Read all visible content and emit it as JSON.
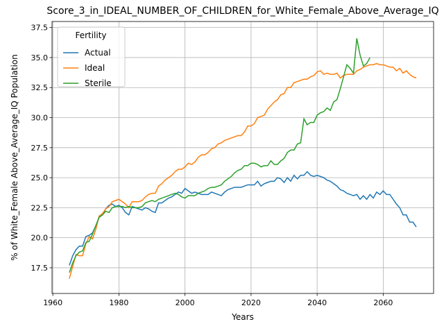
{
  "chart_data": {
    "type": "line",
    "title": "Score_3_in_IDEAL_NUMBER_OF_CHILDREN_for_White_Female_Above_Average_IQ",
    "xlabel": "Years",
    "ylabel": "% of White_Female Above_Average_IQ Population",
    "x": [
      1965,
      1966,
      1967,
      1968,
      1969,
      1970,
      1971,
      1972,
      1973,
      1974,
      1975,
      1976,
      1977,
      1978,
      1979,
      1980,
      1981,
      1982,
      1983,
      1984,
      1985,
      1986,
      1987,
      1988,
      1989,
      1990,
      1991,
      1992,
      1993,
      1994,
      1995,
      1996,
      1997,
      1998,
      1999,
      2000,
      2001,
      2002,
      2003,
      2004,
      2005,
      2006,
      2007,
      2008,
      2009,
      2010,
      2011,
      2012,
      2013,
      2014,
      2015,
      2016,
      2017,
      2018,
      2019,
      2020,
      2021,
      2022,
      2023,
      2024,
      2025,
      2026,
      2027,
      2028,
      2029,
      2030,
      2031,
      2032,
      2033,
      2034,
      2035,
      2036,
      2037,
      2038,
      2039,
      2040,
      2041,
      2042,
      2043,
      2044,
      2045,
      2046,
      2047,
      2048,
      2049,
      2050,
      2051,
      2052,
      2053,
      2054,
      2055,
      2056,
      2057,
      2058,
      2059,
      2060,
      2061,
      2062,
      2063,
      2064,
      2065,
      2066,
      2067,
      2068,
      2069,
      2070
    ],
    "series": [
      {
        "name": "Actual",
        "color": "#1f77b4",
        "values": [
          17.7,
          18.5,
          19.0,
          19.3,
          19.3,
          20.1,
          20.2,
          20.4,
          21.0,
          21.7,
          21.9,
          22.4,
          22.7,
          22.8,
          22.6,
          22.7,
          22.5,
          22.1,
          21.9,
          22.6,
          22.5,
          22.4,
          22.3,
          22.5,
          22.4,
          22.2,
          22.1,
          22.9,
          22.9,
          23.1,
          23.3,
          23.4,
          23.6,
          23.8,
          23.7,
          24.1,
          23.9,
          23.7,
          23.8,
          23.7,
          23.6,
          23.6,
          23.6,
          23.8,
          23.7,
          23.6,
          23.5,
          23.8,
          24.0,
          24.1,
          24.2,
          24.2,
          24.2,
          24.3,
          24.4,
          24.4,
          24.4,
          24.7,
          24.3,
          24.5,
          24.6,
          24.7,
          24.7,
          25.0,
          24.9,
          24.6,
          25.0,
          24.7,
          25.2,
          24.9,
          25.2,
          25.2,
          25.5,
          25.2,
          25.1,
          25.2,
          25.1,
          25.0,
          24.8,
          24.7,
          24.5,
          24.3,
          24.0,
          23.9,
          23.7,
          23.6,
          23.5,
          23.6,
          23.2,
          23.5,
          23.2,
          23.6,
          23.3,
          23.8,
          23.6,
          23.9,
          23.6,
          23.6,
          23.2,
          22.8,
          22.5,
          21.9,
          21.9,
          21.3,
          21.3,
          20.9
        ]
      },
      {
        "name": "Ideal",
        "color": "#ff7f0e",
        "values": [
          16.6,
          17.6,
          18.6,
          18.5,
          18.5,
          19.5,
          20.1,
          19.9,
          20.7,
          21.8,
          22.0,
          22.4,
          22.6,
          23.0,
          23.1,
          23.2,
          23.0,
          22.8,
          22.5,
          23.0,
          23.0,
          23.0,
          23.1,
          23.4,
          23.6,
          23.7,
          23.7,
          24.3,
          24.5,
          24.8,
          25.0,
          25.2,
          25.5,
          25.7,
          25.7,
          25.9,
          26.2,
          26.1,
          26.3,
          26.7,
          26.9,
          26.9,
          27.1,
          27.4,
          27.5,
          27.8,
          27.9,
          28.1,
          28.2,
          28.3,
          28.4,
          28.5,
          28.5,
          28.8,
          29.3,
          29.3,
          29.5,
          30.0,
          30.1,
          30.2,
          30.7,
          31.0,
          31.3,
          31.5,
          31.9,
          32.0,
          32.5,
          32.5,
          32.9,
          33.0,
          33.1,
          33.2,
          33.2,
          33.4,
          33.5,
          33.8,
          33.9,
          33.6,
          33.7,
          33.6,
          33.6,
          33.7,
          33.3,
          33.5,
          33.6,
          33.6,
          33.6,
          33.9,
          34.0,
          34.2,
          34.3,
          34.4,
          34.4,
          34.5,
          34.4,
          34.4,
          34.3,
          34.2,
          34.2,
          33.9,
          34.1,
          33.7,
          33.9,
          33.6,
          33.4,
          33.3
        ]
      },
      {
        "name": "Sterile",
        "color": "#2ca02c",
        "values": [
          17.1,
          17.9,
          18.5,
          18.8,
          18.9,
          19.6,
          19.7,
          20.3,
          21.0,
          21.7,
          21.9,
          22.2,
          22.1,
          22.5,
          22.6,
          22.6,
          22.6,
          22.5,
          22.6,
          22.5,
          22.5,
          22.5,
          22.6,
          22.9,
          23.0,
          23.1,
          23.0,
          23.2,
          23.3,
          23.4,
          23.5,
          23.6,
          23.7,
          23.6,
          23.4,
          23.3,
          23.5,
          23.5,
          23.5,
          23.7,
          23.8,
          23.9,
          24.1,
          24.2,
          24.2,
          24.3,
          24.4,
          24.7,
          24.9,
          25.1,
          25.4,
          25.6,
          25.7,
          26.0,
          26.0,
          26.2,
          26.2,
          26.1,
          25.9,
          26.0,
          26.0,
          26.4,
          26.1,
          26.1,
          26.4,
          26.6,
          27.1,
          27.3,
          27.3,
          27.8,
          27.9,
          29.9,
          29.4,
          29.6,
          29.6,
          30.2,
          30.4,
          30.5,
          30.8,
          30.6,
          31.3,
          31.5,
          32.4,
          33.4,
          34.4,
          34.1,
          33.7,
          36.6,
          35.2,
          34.3,
          34.5,
          35.0,
          null,
          null,
          null,
          null,
          null,
          null,
          null,
          null,
          null,
          null,
          null,
          null,
          null,
          null
        ]
      }
    ],
    "xlim": [
      1959.75,
      2075.25
    ],
    "xticks": [
      1960,
      1980,
      2000,
      2020,
      2040,
      2060
    ],
    "ylim": [
      15.36,
      38.0
    ],
    "yticks": [
      17.5,
      {
        "value": 20,
        "label": "20.0"
      },
      22.5,
      {
        "value": 25,
        "label": "25.0"
      },
      27.5,
      {
        "value": 30,
        "label": "30.0"
      },
      32.5,
      {
        "value": 35,
        "label": "35.0"
      },
      37.5
    ],
    "grid": true,
    "legend_title": "Fertility",
    "legend_position": "upper left"
  }
}
